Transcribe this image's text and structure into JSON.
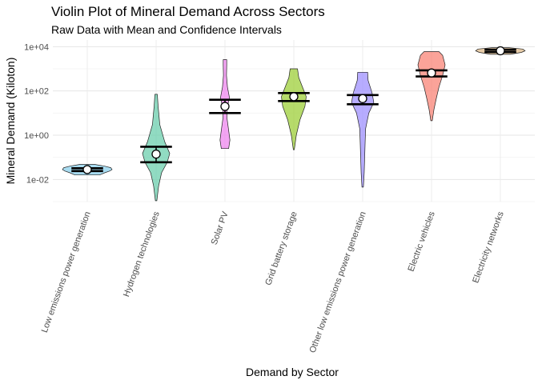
{
  "chart_data": {
    "type": "violin",
    "title": "Violin Plot of Mineral Demand Across Sectors",
    "subtitle": "Raw Data with Mean and Confidence Intervals",
    "xlabel": "Demand by Sector",
    "ylabel": "Mineral Demand (Kiloton)",
    "y_scale": "log10",
    "ylim": [
      0.001,
      20000
    ],
    "y_ticks": [
      0.01,
      1,
      100,
      10000
    ],
    "y_tick_labels": [
      "1e-02",
      "1e+00",
      "1e+02",
      "1e+04"
    ],
    "grid": true,
    "legend": "none",
    "categories": [
      "Low emissions power generation",
      "Hydrogen technologies",
      "Solar PV",
      "Grid battery storage",
      "Other low emissions power generation",
      "Electric vehicles",
      "Electricity networks"
    ],
    "series": [
      {
        "color": "#87CEEB",
        "min": 0.016,
        "max": 0.048,
        "mean": 0.028,
        "ci_low": 0.024,
        "ci_high": 0.032,
        "profile": [
          [
            0.016,
            0.5
          ],
          [
            0.02,
            0.7
          ],
          [
            0.024,
            0.9
          ],
          [
            0.028,
            1.0
          ],
          [
            0.034,
            0.95
          ],
          [
            0.04,
            0.7
          ],
          [
            0.048,
            0.3
          ]
        ]
      },
      {
        "color": "#66CDAA",
        "min": 0.0011,
        "max": 70,
        "mean": 0.14,
        "ci_low": 0.06,
        "ci_high": 0.3,
        "profile": [
          [
            0.0011,
            0.03
          ],
          [
            0.005,
            0.1
          ],
          [
            0.02,
            0.22
          ],
          [
            0.06,
            0.45
          ],
          [
            0.15,
            0.55
          ],
          [
            0.5,
            0.35
          ],
          [
            3,
            0.15
          ],
          [
            20,
            0.08
          ],
          [
            70,
            0.05
          ]
        ]
      },
      {
        "color": "#EE82EE",
        "min": 0.25,
        "max": 2600,
        "mean": 20,
        "ci_low": 10,
        "ci_high": 40,
        "profile": [
          [
            0.25,
            0.15
          ],
          [
            0.6,
            0.2
          ],
          [
            2,
            0.14
          ],
          [
            6,
            0.08
          ],
          [
            15,
            0.08
          ],
          [
            50,
            0.18
          ],
          [
            150,
            0.1
          ],
          [
            500,
            0.06
          ],
          [
            1500,
            0.07
          ],
          [
            2600,
            0.07
          ]
        ]
      },
      {
        "color": "#9ACD32",
        "min": 0.22,
        "max": 1000,
        "mean": 55,
        "ci_low": 35,
        "ci_high": 80,
        "profile": [
          [
            0.22,
            0.02
          ],
          [
            1,
            0.1
          ],
          [
            5,
            0.25
          ],
          [
            20,
            0.45
          ],
          [
            55,
            0.5
          ],
          [
            150,
            0.35
          ],
          [
            400,
            0.2
          ],
          [
            1000,
            0.15
          ]
        ]
      },
      {
        "color": "#9B8CFF",
        "min": 0.0045,
        "max": 700,
        "mean": 45,
        "ci_low": 25,
        "ci_high": 65,
        "profile": [
          [
            0.0045,
            0.03
          ],
          [
            0.02,
            0.06
          ],
          [
            0.1,
            0.08
          ],
          [
            0.5,
            0.1
          ],
          [
            2,
            0.12
          ],
          [
            10,
            0.25
          ],
          [
            30,
            0.45
          ],
          [
            80,
            0.38
          ],
          [
            300,
            0.22
          ],
          [
            700,
            0.2
          ]
        ]
      },
      {
        "color": "#FA8072",
        "min": 4.5,
        "max": 6000,
        "mean": 650,
        "ci_low": 450,
        "ci_high": 850,
        "profile": [
          [
            4.5,
            0.03
          ],
          [
            15,
            0.1
          ],
          [
            50,
            0.2
          ],
          [
            150,
            0.3
          ],
          [
            500,
            0.45
          ],
          [
            1500,
            0.55
          ],
          [
            4000,
            0.45
          ],
          [
            6000,
            0.3
          ]
        ]
      },
      {
        "color": "#DEB887",
        "min": 4500,
        "max": 9000,
        "mean": 6500,
        "ci_low": 5700,
        "ci_high": 7300,
        "profile": [
          [
            4500,
            0.4
          ],
          [
            5500,
            0.85
          ],
          [
            6500,
            1.0
          ],
          [
            7800,
            0.9
          ],
          [
            9000,
            0.35
          ]
        ]
      }
    ]
  }
}
